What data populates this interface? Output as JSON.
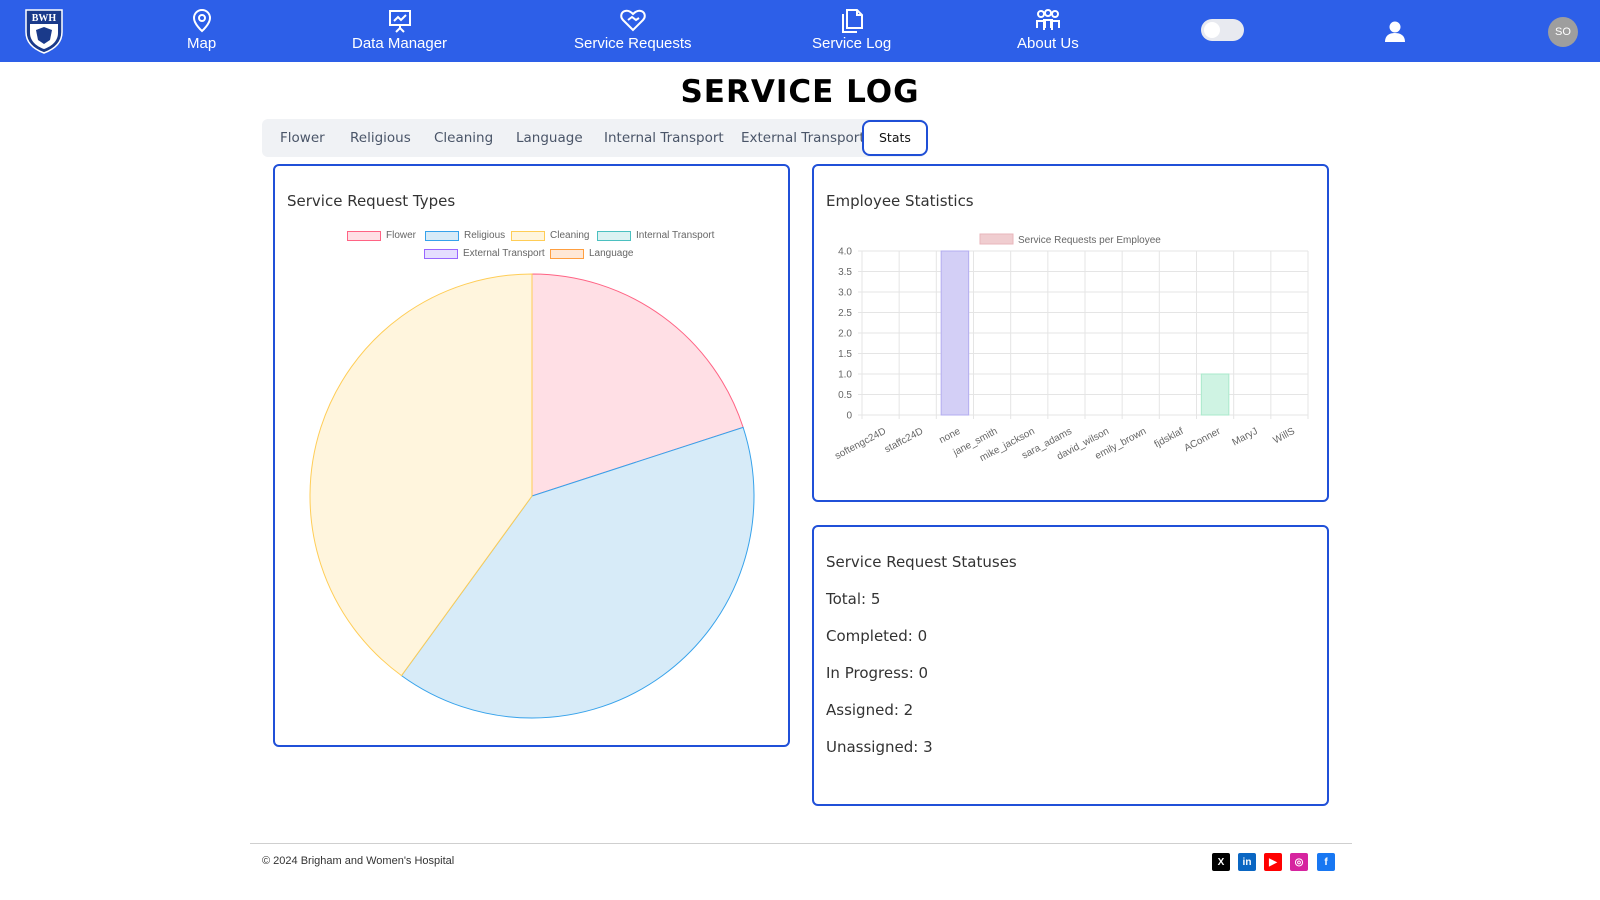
{
  "nav": {
    "logo_text": "BWH",
    "items": [
      {
        "label": "Map",
        "icon": "map-pin-icon"
      },
      {
        "label": "Data Manager",
        "icon": "chart-board-icon"
      },
      {
        "label": "Service Requests",
        "icon": "heart-hand-icon"
      },
      {
        "label": "Service Log",
        "icon": "document-copy-icon"
      },
      {
        "label": "About Us",
        "icon": "team-icon"
      }
    ],
    "avatar_initials": "SO"
  },
  "page": {
    "title": "SERVICE LOG"
  },
  "tabs": [
    {
      "label": "Flower"
    },
    {
      "label": "Religious"
    },
    {
      "label": "Cleaning"
    },
    {
      "label": "Language"
    },
    {
      "label": "Internal Transport"
    },
    {
      "label": "External Transport"
    },
    {
      "label": "Stats",
      "active": true
    }
  ],
  "types_card": {
    "title": "Service Request Types"
  },
  "employee_card": {
    "title": "Employee Statistics"
  },
  "status_card": {
    "title": "Service Request Statuses",
    "lines": [
      "Total: 5",
      "Completed: 0",
      "In Progress: 0",
      "Assigned: 2",
      "Unassigned: 3"
    ]
  },
  "colors": {
    "nav_bg": "#2d5fe8",
    "card_border": "#2050d8"
  },
  "chart_data": [
    {
      "type": "pie",
      "legend": [
        "Flower",
        "Religious",
        "Cleaning",
        "Internal Transport",
        "External Transport",
        "Language"
      ],
      "values": [
        1,
        2,
        2,
        0,
        0,
        0
      ],
      "colors": [
        {
          "fill": "#ffdfe5",
          "stroke": "#ff6384"
        },
        {
          "fill": "#d7ebf8",
          "stroke": "#36a2eb"
        },
        {
          "fill": "#fff5dd",
          "stroke": "#ffcd56"
        },
        {
          "fill": "#dbf2f2",
          "stroke": "#4bc0c0"
        },
        {
          "fill": "#e5deff",
          "stroke": "#9966ff"
        },
        {
          "fill": "#ffe8d6",
          "stroke": "#ff9f40"
        }
      ],
      "legend_position": "top"
    },
    {
      "type": "bar",
      "series": [
        {
          "name": "Service Requests per Employee",
          "values": [
            0,
            0,
            4,
            0,
            0,
            0,
            0,
            0,
            0,
            1,
            0,
            0
          ]
        }
      ],
      "categories": [
        "softengc24D",
        "staffc24D",
        "none",
        "jane_smith",
        "mike_jackson",
        "sara_adams",
        "david_wilson",
        "emily_brown",
        "fjdsklaf",
        "AConner",
        "MaryJ",
        "WillS"
      ],
      "ylim": [
        0,
        4
      ],
      "yticks": [
        "4.0",
        "3.5",
        "3.0",
        "2.5",
        "2.0",
        "1.5",
        "1.0",
        "0.5",
        "0"
      ],
      "bar_colors": {
        "2": {
          "fill": "#d3cff6",
          "stroke": "#b3acf0"
        },
        "9": {
          "fill": "#cff3e3",
          "stroke": "#a9e9cb"
        }
      },
      "legend_color": {
        "fill": "#f0cdd0",
        "stroke": "#e8b6bb"
      },
      "grid": true,
      "legend_position": "top"
    }
  ],
  "footer": {
    "copyright": "© 2024 Brigham and Women's Hospital",
    "social": [
      {
        "icon": "x-twitter-icon",
        "glyph": "X",
        "color": "#000000"
      },
      {
        "icon": "linkedin-icon",
        "glyph": "in",
        "color": "#0a66c2"
      },
      {
        "icon": "youtube-icon",
        "glyph": "▶",
        "color": "#ff0000"
      },
      {
        "icon": "instagram-icon",
        "glyph": "◎",
        "color": "#d6249f"
      },
      {
        "icon": "facebook-icon",
        "glyph": "f",
        "color": "#1877f2"
      }
    ]
  }
}
